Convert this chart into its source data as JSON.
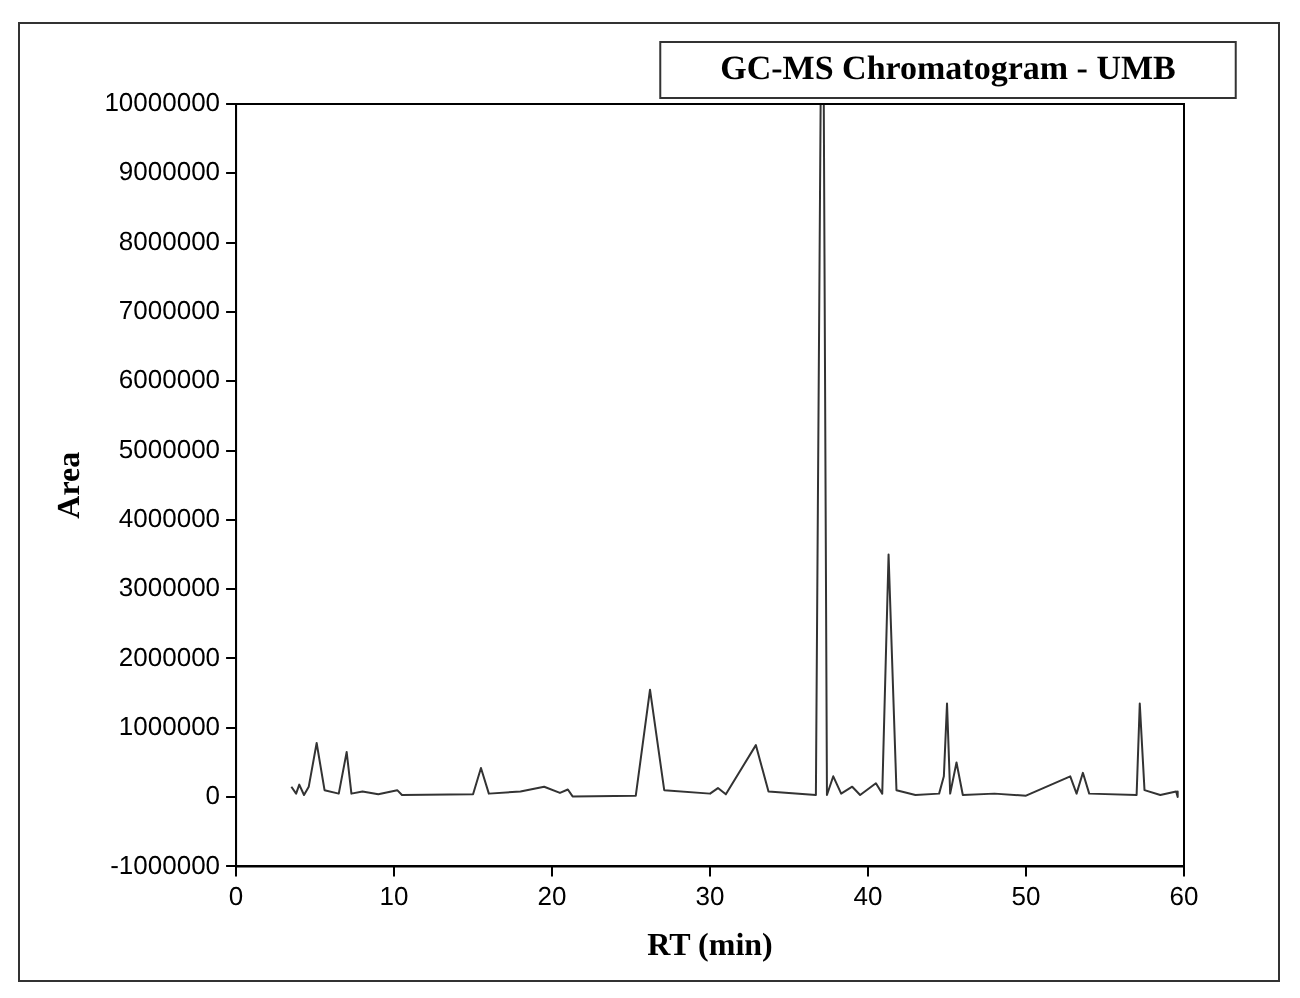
{
  "chart_data": {
    "type": "line",
    "title": "GC-MS Chromatogram - UMB",
    "xlabel": "RT (min)",
    "ylabel": "Area",
    "series": [
      {
        "color": "#333333",
        "x": [
          3.5,
          3.8,
          4.0,
          4.3,
          4.6,
          5.1,
          5.6,
          6.5,
          7.0,
          7.3,
          8,
          9,
          10.2,
          10.5,
          15,
          15.5,
          16,
          18,
          19.5,
          20.5,
          21,
          21.3,
          25.3,
          26.2,
          27.1,
          30,
          30.5,
          31,
          32.9,
          33.7,
          36.7,
          37.0,
          37.2,
          37.4,
          37.8,
          38.3,
          39,
          39.5,
          40.5,
          40.9,
          41.3,
          41.8,
          43,
          44.5,
          44.8,
          45.0,
          45.2,
          45.6,
          46,
          48,
          50,
          52.8,
          53.2,
          53.6,
          54,
          57,
          57.2,
          57.5,
          58.5,
          59.5,
          59.6
        ],
        "values": [
          150000,
          50000,
          180000,
          30000,
          150000,
          780000,
          100000,
          50000,
          650000,
          50000,
          80000,
          40000,
          100000,
          30000,
          40000,
          420000,
          50000,
          80000,
          150000,
          60000,
          110000,
          10000,
          20000,
          1550000,
          100000,
          50000,
          130000,
          40000,
          750000,
          80000,
          30000,
          10000000,
          10000000,
          30000,
          300000,
          50000,
          150000,
          30000,
          200000,
          50000,
          3500000,
          100000,
          30000,
          50000,
          300000,
          1350000,
          50000,
          500000,
          30000,
          50000,
          20000,
          300000,
          50000,
          350000,
          50000,
          30000,
          1350000,
          100000,
          30000,
          80000,
          0
        ]
      }
    ],
    "xlim": [
      0,
      60
    ],
    "xticks": [
      0,
      10,
      20,
      30,
      40,
      50,
      60
    ],
    "ylim": [
      -1000000,
      10000000
    ],
    "yticks": [
      -1000000,
      0,
      1000000,
      2000000,
      3000000,
      4000000,
      5000000,
      6000000,
      7000000,
      8000000,
      9000000,
      10000000
    ],
    "grid": false,
    "legend": false,
    "marker": "none",
    "line_style": "solid"
  }
}
